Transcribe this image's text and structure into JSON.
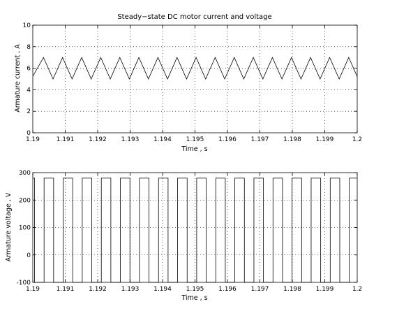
{
  "chart_data": [
    {
      "type": "line",
      "title": "Steady−state DC motor current and voltage",
      "xlabel": "Time , s",
      "ylabel": "Armature current , A",
      "xlim": [
        1.19,
        1.2
      ],
      "ylim": [
        0,
        10
      ],
      "xticks": [
        "1.19",
        "1.191",
        "1.192",
        "1.193",
        "1.194",
        "1.195",
        "1.196",
        "1.197",
        "1.198",
        "1.199",
        "1.2"
      ],
      "yticks": [
        "0",
        "2",
        "4",
        "6",
        "8",
        "10"
      ],
      "grid": true,
      "series": [
        {
          "waveform": "triangle",
          "period_s": 0.000588,
          "first_peak_s": 1.19033,
          "min": 5.0,
          "max": 7.0,
          "rise_fraction": 0.5,
          "color": "#000000"
        }
      ]
    },
    {
      "type": "line",
      "title": "",
      "xlabel": "Time , s",
      "ylabel": "Armature voltage , V",
      "xlim": [
        1.19,
        1.2
      ],
      "ylim": [
        -100,
        300
      ],
      "xticks": [
        "1.19",
        "1.191",
        "1.192",
        "1.193",
        "1.194",
        "1.195",
        "1.196",
        "1.197",
        "1.198",
        "1.199",
        "1.2"
      ],
      "yticks": [
        "-100",
        "0",
        "100",
        "200",
        "300"
      ],
      "grid": true,
      "series": [
        {
          "waveform": "square",
          "period_s": 0.000588,
          "first_high_start_s": 1.18976,
          "high_value": 280,
          "low_value": -100,
          "duty": 0.5,
          "color": "#000000"
        }
      ]
    }
  ]
}
